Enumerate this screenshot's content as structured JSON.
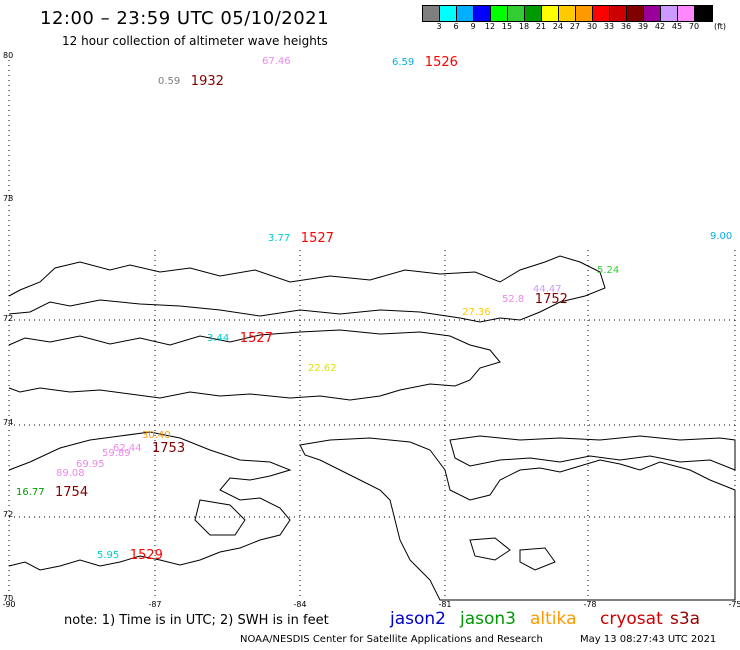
{
  "header": {
    "title": "12:00 – 23:59 UTC 05/10/2021",
    "subtitle": "12 hour collection of altimeter wave heights"
  },
  "colorbar": {
    "unit": "(ft)",
    "ticks": [
      "3",
      "6",
      "9",
      "12",
      "15",
      "18",
      "21",
      "24",
      "27",
      "30",
      "33",
      "36",
      "39",
      "42",
      "45",
      "70"
    ],
    "colors": [
      "#7f7f7f",
      "#00ffff",
      "#00b0ff",
      "#0000ff",
      "#00ff00",
      "#33cc33",
      "#009900",
      "#ffff00",
      "#ffcc00",
      "#ff9900",
      "#ff0000",
      "#cc0000",
      "#800000",
      "#990099",
      "#cc99ff",
      "#ff88ff",
      "#000000"
    ]
  },
  "map": {
    "lat_labels": [
      "80",
      "78",
      "72",
      "74",
      "72",
      "70"
    ],
    "lon_labels": [
      "-90",
      "-87",
      "-84",
      "-81",
      "-78",
      "-75"
    ],
    "observations": [
      {
        "swh": "0.59",
        "time": "1932",
        "swh_color": "#7f7f7f",
        "time_color": "#800000"
      },
      {
        "swh": "67.46",
        "time": "",
        "swh_color": "#ee88ee",
        "time_color": "#ff0000"
      },
      {
        "swh": "6.59",
        "time": "1526",
        "swh_color": "#00b0e0",
        "time_color": "#ff0000"
      },
      {
        "swh": "3.77",
        "time": "1527",
        "swh_color": "#00cccc",
        "time_color": "#ff0000"
      },
      {
        "swh": "9.00",
        "time": "",
        "swh_color": "#00b0e0",
        "time_color": "#ff0000"
      },
      {
        "swh": "5.24",
        "time": "",
        "swh_color": "#33cc33",
        "time_color": "#ff0000"
      },
      {
        "swh": "44.47",
        "time": "",
        "swh_color": "#cc99ff",
        "time_color": "#ff0000"
      },
      {
        "swh": "52.8",
        "time": "1752",
        "swh_color": "#ee88ee",
        "time_color": "#800000"
      },
      {
        "swh": "27.36",
        "time": "",
        "swh_color": "#ffcc00",
        "time_color": "#ff0000"
      },
      {
        "swh": "3.44",
        "time": "1527",
        "swh_color": "#00cccc",
        "time_color": "#ff0000"
      },
      {
        "swh": "22.62",
        "time": "",
        "swh_color": "#e0e000",
        "time_color": "#ff0000"
      },
      {
        "swh": "30.40",
        "time": "",
        "swh_color": "#ff9900",
        "time_color": "#ff0000"
      },
      {
        "swh": "62.44",
        "time": "1753",
        "swh_color": "#ee88ee",
        "time_color": "#800000"
      },
      {
        "swh": "59.89",
        "time": "",
        "swh_color": "#ee88ee",
        "time_color": "#ff0000"
      },
      {
        "swh": "69.95",
        "time": "",
        "swh_color": "#ee88ee",
        "time_color": "#ff0000"
      },
      {
        "swh": "89.08",
        "time": "",
        "swh_color": "#ee88ee",
        "time_color": "#ff0000"
      },
      {
        "swh": "16.77",
        "time": "1754",
        "swh_color": "#009900",
        "time_color": "#800000"
      },
      {
        "swh": "5.95",
        "time": "1529",
        "swh_color": "#00cccc",
        "time_color": "#ff0000"
      }
    ]
  },
  "footer": {
    "note": "note:  1) Time is in UTC;  2) SWH is in feet",
    "satellites": [
      {
        "name": "jason2",
        "color": "#0000cc"
      },
      {
        "name": "jason3",
        "color": "#009900"
      },
      {
        "name": "altika",
        "color": "#ff9900"
      },
      {
        "name": "cryosat",
        "color": "#cc0000"
      },
      {
        "name": "s3a",
        "color": "#990000"
      }
    ],
    "credit": "NOAA/NESDIS Center for Satellite Applications and Research",
    "timestamp": "May 13 08:27:43 UTC 2021"
  }
}
